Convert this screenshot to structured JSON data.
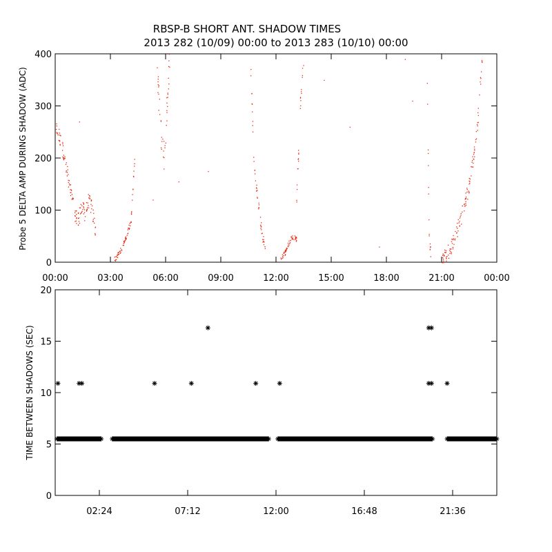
{
  "title_line1": "RBSP-B SHORT ANT. SHADOW TIMES",
  "title_line2": "2013 282 (10/09) 00:00 to 2013 283 (10/10) 00:00",
  "colors": {
    "points": "#e8270f",
    "stars": "#000000",
    "axis": "#000000"
  },
  "chart_data": [
    {
      "type": "scatter",
      "ylabel": "Probe 5 DELTA AMP DURING SHADOW (ADC)",
      "xlim_hours": [
        0,
        24
      ],
      "ylim": [
        0,
        400
      ],
      "x_tick_hours": [
        0,
        3,
        6,
        9,
        12,
        15,
        18,
        21,
        24
      ],
      "x_tick_labels": [
        "00:00",
        "03:00",
        "06:00",
        "09:00",
        "12:00",
        "15:00",
        "18:00",
        "21:00",
        "00:00"
      ],
      "y_ticks": [
        0,
        100,
        200,
        300,
        400
      ],
      "y_tick_labels": [
        "0",
        "100",
        "200",
        "300",
        "400"
      ],
      "segments": [
        {
          "x": [
            0.0,
            0.3,
            0.5,
            0.8,
            1.0,
            1.2,
            1.5,
            1.6,
            1.8,
            2.0,
            2.2
          ],
          "y": [
            260,
            230,
            200,
            140,
            100,
            80,
            110,
            90,
            120,
            100,
            50
          ],
          "spread": 15
        },
        {
          "x": [
            3.2,
            3.5,
            3.8,
            4.1,
            4.2,
            4.3
          ],
          "y": [
            5,
            20,
            45,
            80,
            140,
            200
          ],
          "spread": 5
        },
        {
          "x": [
            5.5,
            5.7,
            5.9,
            6.1,
            6.2
          ],
          "y": [
            390,
            260,
            200,
            330,
            400
          ],
          "spread": 30
        },
        {
          "x": [
            10.6,
            10.8,
            11.0,
            11.2,
            11.4
          ],
          "y": [
            380,
            180,
            120,
            60,
            20
          ],
          "spread": 10
        },
        {
          "x": [
            12.2,
            12.5,
            12.7,
            12.9,
            13.1
          ],
          "y": [
            5,
            20,
            40,
            50,
            45
          ],
          "spread": 5
        },
        {
          "x": [
            13.1,
            13.3,
            13.5
          ],
          "y": [
            120,
            300,
            400
          ],
          "spread": 15
        },
        {
          "x": [
            20.2,
            20.3,
            20.4
          ],
          "y": [
            350,
            60,
            10
          ],
          "spread": 10
        },
        {
          "x": [
            21.0,
            21.5,
            22.0,
            22.5,
            22.9,
            23.2
          ],
          "y": [
            5,
            30,
            80,
            150,
            250,
            400
          ],
          "spread": 15
        }
      ],
      "isolated_points": [
        {
          "x": 1.3,
          "y": 270
        },
        {
          "x": 6.7,
          "y": 155
        },
        {
          "x": 8.3,
          "y": 175
        },
        {
          "x": 14.6,
          "y": 350
        },
        {
          "x": 16.0,
          "y": 260
        },
        {
          "x": 17.6,
          "y": 30
        },
        {
          "x": 19.0,
          "y": 390
        },
        {
          "x": 19.4,
          "y": 310
        },
        {
          "x": 5.3,
          "y": 120
        }
      ]
    },
    {
      "type": "scatter",
      "ylabel": "TIME BETWEEN SHADOWS (SEC)",
      "xlim_hours": [
        0,
        24
      ],
      "ylim": [
        0,
        20
      ],
      "x_tick_hours": [
        2.4,
        7.2,
        12.0,
        16.8,
        21.6
      ],
      "x_tick_labels": [
        "02:24",
        "07:12",
        "12:00",
        "16:48",
        "21:36"
      ],
      "y_ticks": [
        0,
        5,
        10,
        15,
        20
      ],
      "y_tick_labels": [
        "0",
        "5",
        "10",
        "15",
        "20"
      ],
      "bands": [
        {
          "from": 0.1,
          "to": 2.5,
          "y": 5.5
        },
        {
          "from": 3.1,
          "to": 11.6,
          "y": 5.5
        },
        {
          "from": 12.1,
          "to": 20.5,
          "y": 5.5
        },
        {
          "from": 21.3,
          "to": 24.0,
          "y": 5.5
        }
      ],
      "points": [
        {
          "x": 0.15,
          "y": 10.9
        },
        {
          "x": 1.3,
          "y": 10.9
        },
        {
          "x": 1.45,
          "y": 10.9
        },
        {
          "x": 5.4,
          "y": 10.9
        },
        {
          "x": 7.4,
          "y": 10.9
        },
        {
          "x": 8.3,
          "y": 16.3
        },
        {
          "x": 10.9,
          "y": 10.9
        },
        {
          "x": 12.2,
          "y": 10.9
        },
        {
          "x": 20.3,
          "y": 16.3
        },
        {
          "x": 20.45,
          "y": 16.3
        },
        {
          "x": 20.3,
          "y": 10.9
        },
        {
          "x": 20.45,
          "y": 10.9
        },
        {
          "x": 21.3,
          "y": 10.9
        }
      ]
    }
  ]
}
